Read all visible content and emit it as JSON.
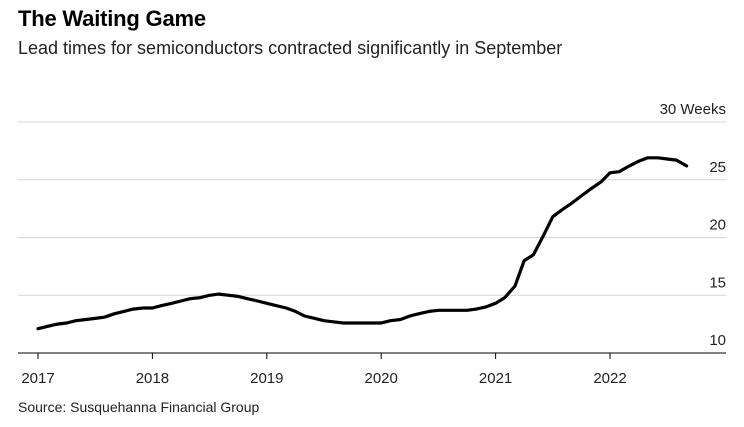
{
  "chart_data": {
    "type": "line",
    "title": "The Waiting Game",
    "subtitle": "Lead times for semiconductors contracted significantly in September",
    "source": "Source: Susquehanna Financial Group",
    "xlabel": "",
    "ylabel": "Weeks",
    "ylim": [
      10,
      30
    ],
    "xlim": [
      2017.0,
      2022.95
    ],
    "y_ticks": [
      10,
      15,
      20,
      25,
      30
    ],
    "y_tick_labels": [
      "10",
      "15",
      "20",
      "25",
      "30 Weeks"
    ],
    "x_ticks": [
      2017,
      2018,
      2019,
      2020,
      2021,
      2022
    ],
    "x_tick_labels": [
      "2017",
      "2018",
      "2019",
      "2020",
      "2021",
      "2022"
    ],
    "grid": true,
    "series": [
      {
        "name": "Lead times",
        "x": [
          2017.0,
          2017.08,
          2017.17,
          2017.25,
          2017.33,
          2017.42,
          2017.5,
          2017.58,
          2017.67,
          2017.75,
          2017.83,
          2017.92,
          2018.0,
          2018.08,
          2018.17,
          2018.25,
          2018.33,
          2018.42,
          2018.5,
          2018.58,
          2018.67,
          2018.75,
          2018.83,
          2018.92,
          2019.0,
          2019.08,
          2019.17,
          2019.25,
          2019.33,
          2019.42,
          2019.5,
          2019.58,
          2019.67,
          2019.75,
          2019.83,
          2019.92,
          2020.0,
          2020.08,
          2020.17,
          2020.25,
          2020.33,
          2020.42,
          2020.5,
          2020.58,
          2020.67,
          2020.75,
          2020.83,
          2020.92,
          2021.0,
          2021.08,
          2021.17,
          2021.25,
          2021.33,
          2021.42,
          2021.5,
          2021.58,
          2021.67,
          2021.75,
          2021.83,
          2021.92,
          2022.0,
          2022.08,
          2022.17,
          2022.25,
          2022.33,
          2022.42,
          2022.5,
          2022.58,
          2022.67
        ],
        "values": [
          12.1,
          12.3,
          12.5,
          12.6,
          12.8,
          12.9,
          13.0,
          13.1,
          13.4,
          13.6,
          13.8,
          13.9,
          13.9,
          14.1,
          14.3,
          14.5,
          14.7,
          14.8,
          15.0,
          15.1,
          15.0,
          14.9,
          14.7,
          14.5,
          14.3,
          14.1,
          13.9,
          13.6,
          13.2,
          13.0,
          12.8,
          12.7,
          12.6,
          12.6,
          12.6,
          12.6,
          12.6,
          12.8,
          12.9,
          13.2,
          13.4,
          13.6,
          13.7,
          13.7,
          13.7,
          13.7,
          13.8,
          14.0,
          14.3,
          14.8,
          15.8,
          18.0,
          18.5,
          20.2,
          21.8,
          22.4,
          23.0,
          23.6,
          24.2,
          24.8,
          25.6,
          25.7,
          26.2,
          26.6,
          26.9,
          26.9,
          26.8,
          26.7,
          26.2
        ]
      }
    ]
  }
}
